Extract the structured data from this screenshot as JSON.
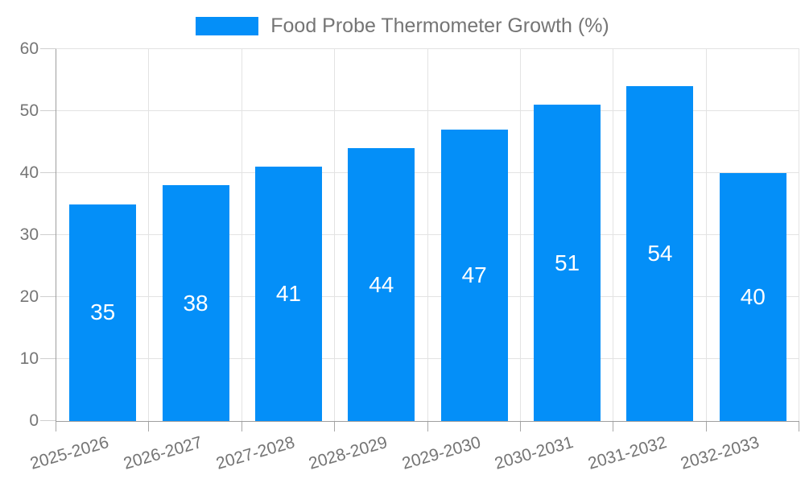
{
  "chart_data": {
    "type": "bar",
    "title": "",
    "legend": {
      "label": "Food Probe Thermometer Growth (%)",
      "position": "top-center"
    },
    "categories": [
      "2025-2026",
      "2026-2027",
      "2027-2028",
      "2028-2029",
      "2029-2030",
      "2030-2031",
      "2031-2032",
      "2032-2033"
    ],
    "series": [
      {
        "name": "Food Probe Thermometer Growth (%)",
        "values": [
          35,
          38,
          41,
          44,
          47,
          51,
          54,
          40
        ]
      }
    ],
    "value_labels_shown_inside_bars": true,
    "xlabel": "",
    "ylabel": "",
    "ylim": [
      0,
      60
    ],
    "yticks": [
      0,
      10,
      20,
      30,
      40,
      50,
      60
    ],
    "grid": "horizontal and vertical, light gray",
    "x_tick_label_rotation_deg": -16,
    "colors": {
      "bar": "#048FF8",
      "bar_value_label": "#ffffff",
      "axis_text": "#757575",
      "axis_line": "#9e9e9e",
      "gridline": "#e3e3e3"
    }
  }
}
